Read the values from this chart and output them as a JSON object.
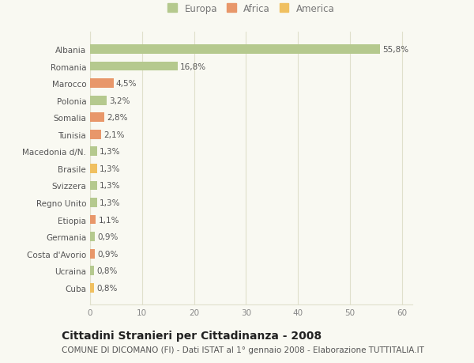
{
  "countries": [
    "Albania",
    "Romania",
    "Marocco",
    "Polonia",
    "Somalia",
    "Tunisia",
    "Macedonia d/N.",
    "Brasile",
    "Svizzera",
    "Regno Unito",
    "Etiopia",
    "Germania",
    "Costa d'Avorio",
    "Ucraina",
    "Cuba"
  ],
  "values": [
    55.8,
    16.8,
    4.5,
    3.2,
    2.8,
    2.1,
    1.3,
    1.3,
    1.3,
    1.3,
    1.1,
    0.9,
    0.9,
    0.8,
    0.8
  ],
  "labels": [
    "55,8%",
    "16,8%",
    "4,5%",
    "3,2%",
    "2,8%",
    "2,1%",
    "1,3%",
    "1,3%",
    "1,3%",
    "1,3%",
    "1,1%",
    "0,9%",
    "0,9%",
    "0,8%",
    "0,8%"
  ],
  "colors": [
    "#b5c98e",
    "#b5c98e",
    "#e8976a",
    "#b5c98e",
    "#e8976a",
    "#e8976a",
    "#b5c98e",
    "#f0c060",
    "#b5c98e",
    "#b5c98e",
    "#e8976a",
    "#b5c98e",
    "#e8976a",
    "#b5c98e",
    "#f0c060"
  ],
  "legend_labels": [
    "Europa",
    "Africa",
    "America"
  ],
  "legend_colors": [
    "#b5c98e",
    "#e8976a",
    "#f0c060"
  ],
  "xlim": [
    0,
    62
  ],
  "xticks": [
    0,
    10,
    20,
    30,
    40,
    50,
    60
  ],
  "title": "Cittadini Stranieri per Cittadinanza - 2008",
  "subtitle": "COMUNE DI DICOMANO (FI) - Dati ISTAT al 1° gennaio 2008 - Elaborazione TUTTITALIA.IT",
  "background_color": "#f9f9f2",
  "grid_color": "#e0e0cc",
  "bar_height": 0.55,
  "title_fontsize": 10,
  "subtitle_fontsize": 7.5,
  "label_fontsize": 7.5,
  "tick_fontsize": 7.5,
  "legend_fontsize": 8.5
}
